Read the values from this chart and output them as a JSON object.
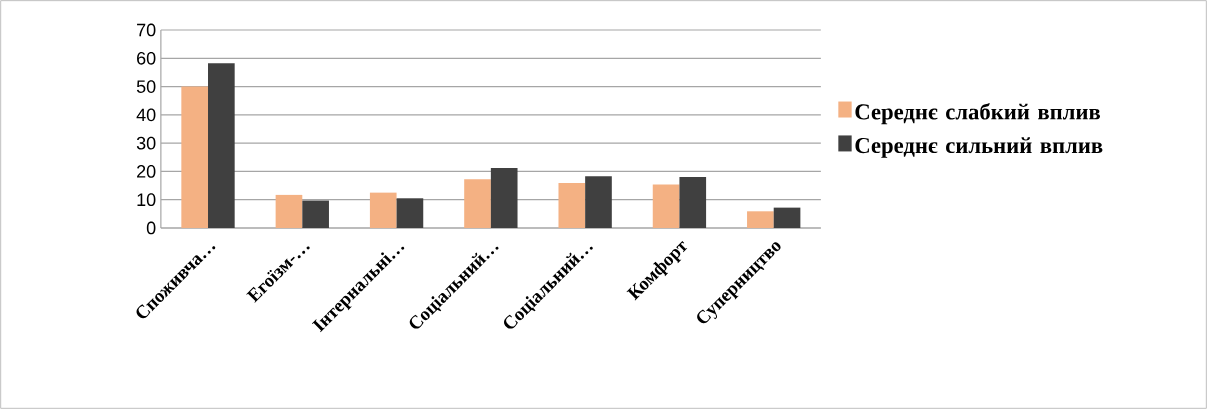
{
  "chart_data": {
    "type": "bar",
    "categories": [
      "Споживча…",
      "Егоїзм-…",
      "Інтернальні…",
      "Соціальний…",
      "Соціальний…",
      "Комфорт",
      "Суперництво"
    ],
    "series": [
      {
        "name": "Середнє слабкий вплив",
        "color": "#f4b183",
        "values": [
          50,
          11.7,
          12.5,
          17.2,
          15.9,
          15.4,
          5.9
        ]
      },
      {
        "name": "Середнє сильний вплив",
        "color": "#404040",
        "values": [
          58.2,
          9.7,
          10.5,
          21.2,
          18.3,
          18.0,
          7.2
        ]
      }
    ],
    "ylim": [
      0,
      70
    ],
    "yticks": [
      0,
      10,
      20,
      30,
      40,
      50,
      60,
      70
    ],
    "grid": "y",
    "legend": "right"
  }
}
